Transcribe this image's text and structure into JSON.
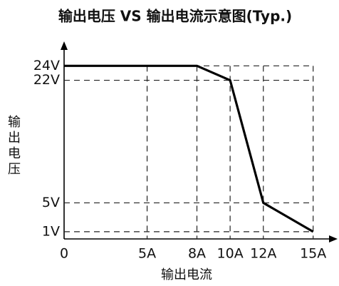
{
  "chart_data": {
    "type": "line",
    "title": "输出电压 VS 输出电流示意图(Typ.)",
    "x_label": "输出电流",
    "y_label": "输出电压",
    "x": [
      0,
      8,
      10,
      12,
      15
    ],
    "series": [
      {
        "name": "输出电压",
        "color": "#000000",
        "values": [
          24,
          24,
          22,
          5,
          1
        ]
      }
    ],
    "xlim": [
      0,
      16.3
    ],
    "ylim": [
      0,
      27
    ],
    "xticks": [
      0,
      {
        "value": 5,
        "label": "5A"
      },
      {
        "value": 8,
        "label": "8A"
      },
      {
        "value": 10,
        "label": "10A"
      },
      {
        "value": 12,
        "label": "12A"
      },
      {
        "value": 15,
        "label": "15A"
      }
    ],
    "yticks": [
      {
        "value": 1,
        "label": "1V"
      },
      {
        "value": 5,
        "label": "5V"
      },
      {
        "value": 22,
        "label": "22V"
      },
      {
        "value": 24,
        "label": "24V"
      }
    ],
    "grid": true
  }
}
